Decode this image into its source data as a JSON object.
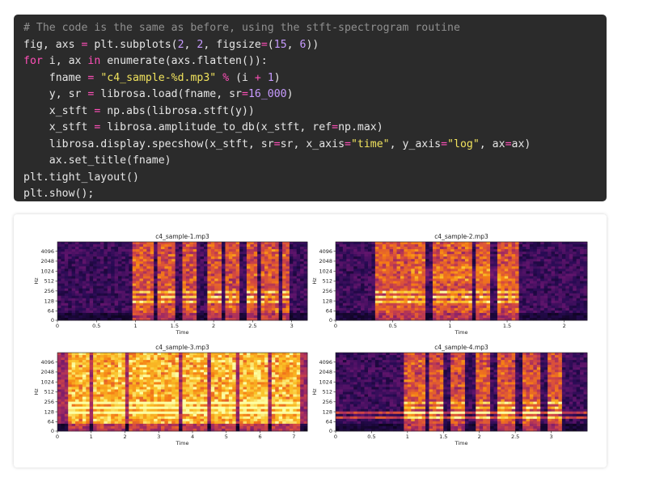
{
  "code": {
    "lines": [
      [
        {
          "t": "comment",
          "v": "# The code is the same as before, using the stft-spectrogram routine"
        }
      ],
      [
        {
          "t": "plain",
          "v": "fig, axs "
        },
        {
          "t": "op",
          "v": "="
        },
        {
          "t": "plain",
          "v": " plt.subplots("
        },
        {
          "t": "number",
          "v": "2"
        },
        {
          "t": "plain",
          "v": ", "
        },
        {
          "t": "number",
          "v": "2"
        },
        {
          "t": "plain",
          "v": ", figsize"
        },
        {
          "t": "op",
          "v": "="
        },
        {
          "t": "plain",
          "v": "("
        },
        {
          "t": "number",
          "v": "15"
        },
        {
          "t": "plain",
          "v": ", "
        },
        {
          "t": "number",
          "v": "6"
        },
        {
          "t": "plain",
          "v": "))"
        }
      ],
      [
        {
          "t": "keyword",
          "v": "for"
        },
        {
          "t": "plain",
          "v": " i, ax "
        },
        {
          "t": "keyword",
          "v": "in"
        },
        {
          "t": "plain",
          "v": " enumerate(axs.flatten()):"
        }
      ],
      [
        {
          "t": "plain",
          "v": "    fname "
        },
        {
          "t": "op",
          "v": "="
        },
        {
          "t": "plain",
          "v": " "
        },
        {
          "t": "string",
          "v": "\"c4_sample-%d.mp3\""
        },
        {
          "t": "plain",
          "v": " "
        },
        {
          "t": "op",
          "v": "%"
        },
        {
          "t": "plain",
          "v": " (i "
        },
        {
          "t": "op",
          "v": "+"
        },
        {
          "t": "plain",
          "v": " "
        },
        {
          "t": "number",
          "v": "1"
        },
        {
          "t": "plain",
          "v": ")"
        }
      ],
      [
        {
          "t": "plain",
          "v": "    y, sr "
        },
        {
          "t": "op",
          "v": "="
        },
        {
          "t": "plain",
          "v": " librosa.load(fname, sr"
        },
        {
          "t": "op",
          "v": "="
        },
        {
          "t": "number",
          "v": "16_000"
        },
        {
          "t": "plain",
          "v": ")"
        }
      ],
      [
        {
          "t": "plain",
          "v": "    x_stft "
        },
        {
          "t": "op",
          "v": "="
        },
        {
          "t": "plain",
          "v": " np.abs(librosa.stft(y))"
        }
      ],
      [
        {
          "t": "plain",
          "v": "    x_stft "
        },
        {
          "t": "op",
          "v": "="
        },
        {
          "t": "plain",
          "v": " librosa.amplitude_to_db(x_stft, ref"
        },
        {
          "t": "op",
          "v": "="
        },
        {
          "t": "plain",
          "v": "np.max)"
        }
      ],
      [
        {
          "t": "plain",
          "v": "    librosa.display.specshow(x_stft, sr"
        },
        {
          "t": "op",
          "v": "="
        },
        {
          "t": "plain",
          "v": "sr, x_axis"
        },
        {
          "t": "op",
          "v": "="
        },
        {
          "t": "string",
          "v": "\"time\""
        },
        {
          "t": "plain",
          "v": ", y_axis"
        },
        {
          "t": "op",
          "v": "="
        },
        {
          "t": "string",
          "v": "\"log\""
        },
        {
          "t": "plain",
          "v": ", ax"
        },
        {
          "t": "op",
          "v": "="
        },
        {
          "t": "plain",
          "v": "ax)"
        }
      ],
      [
        {
          "t": "plain",
          "v": "    ax.set_title(fname)"
        }
      ],
      [
        {
          "t": "plain",
          "v": "plt.tight_layout()"
        }
      ],
      [
        {
          "t": "plain",
          "v": "plt.show();"
        }
      ]
    ]
  },
  "colors": {
    "code_bg": "#2b2b2b",
    "comment": "#8f8f8f",
    "keyword": "#ff4fb8",
    "string": "#f1e35d",
    "number": "#c79bff",
    "plain": "#e6e6e6",
    "spec_low": "#000004",
    "spec_mid": "#b63679",
    "spec_high": "#fcfdbf"
  },
  "chart_data": [
    {
      "type": "heatmap",
      "title": "c4_sample-1.mp3",
      "xlabel": "Time",
      "ylabel": "Hz",
      "y_scale": "log",
      "xlim": [
        0,
        3.2
      ],
      "x_ticks": [
        "0",
        "0.5",
        "1",
        "1.5",
        "2",
        "2.5",
        "3"
      ],
      "y_ticks": [
        "0",
        "64",
        "128",
        "256",
        "512",
        "1024",
        "2048",
        "4096"
      ],
      "grid": false,
      "speech_segments": [
        [
          0.98,
          1.22
        ],
        [
          1.28,
          1.5
        ],
        [
          1.62,
          1.8
        ],
        [
          1.9,
          2.1
        ],
        [
          2.16,
          2.32
        ],
        [
          2.42,
          2.58
        ],
        [
          2.62,
          2.82
        ],
        [
          2.9,
          2.98
        ]
      ]
    },
    {
      "type": "heatmap",
      "title": "c4_sample-2.mp3",
      "xlabel": "Time",
      "ylabel": "Hz",
      "y_scale": "log",
      "xlim": [
        0,
        2.2
      ],
      "x_ticks": [
        "0",
        "0.5",
        "1",
        "1.5",
        "2"
      ],
      "y_ticks": [
        "0",
        "64",
        "128",
        "256",
        "512",
        "1024",
        "2048",
        "4096"
      ],
      "grid": false,
      "speech_segments": [
        [
          0.35,
          0.78
        ],
        [
          0.85,
          1.18
        ],
        [
          1.22,
          1.36
        ],
        [
          1.42,
          1.6
        ]
      ]
    },
    {
      "type": "heatmap",
      "title": "c4_sample-3.mp3",
      "xlabel": "Time",
      "ylabel": "Hz",
      "y_scale": "log",
      "xlim": [
        0,
        7.4
      ],
      "x_ticks": [
        "0",
        "1",
        "2",
        "3",
        "4",
        "5",
        "6",
        "7"
      ],
      "y_ticks": [
        "0",
        "64",
        "128",
        "256",
        "512",
        "1024",
        "2048",
        "4096"
      ],
      "grid": false,
      "speech_segments": [
        [
          0.3,
          1.0
        ],
        [
          1.1,
          2.0
        ],
        [
          2.1,
          2.7
        ],
        [
          2.8,
          3.6
        ],
        [
          3.7,
          4.4
        ],
        [
          4.5,
          5.3
        ],
        [
          5.4,
          6.2
        ],
        [
          6.3,
          7.2
        ]
      ]
    },
    {
      "type": "heatmap",
      "title": "c4_sample-4.mp3",
      "xlabel": "Time",
      "ylabel": "Hz",
      "y_scale": "log",
      "xlim": [
        0,
        3.5
      ],
      "x_ticks": [
        "0",
        "0.5",
        "1",
        "1.5",
        "2",
        "2.5",
        "3"
      ],
      "y_ticks": [
        "0",
        "64",
        "128",
        "256",
        "512",
        "1024",
        "2048",
        "4096"
      ],
      "grid": false,
      "speech_segments": [
        [
          0.95,
          1.25
        ],
        [
          1.3,
          1.52
        ],
        [
          1.62,
          1.82
        ],
        [
          1.95,
          2.15
        ],
        [
          2.25,
          2.5
        ],
        [
          2.6,
          2.85
        ],
        [
          2.95,
          3.15
        ]
      ]
    }
  ]
}
